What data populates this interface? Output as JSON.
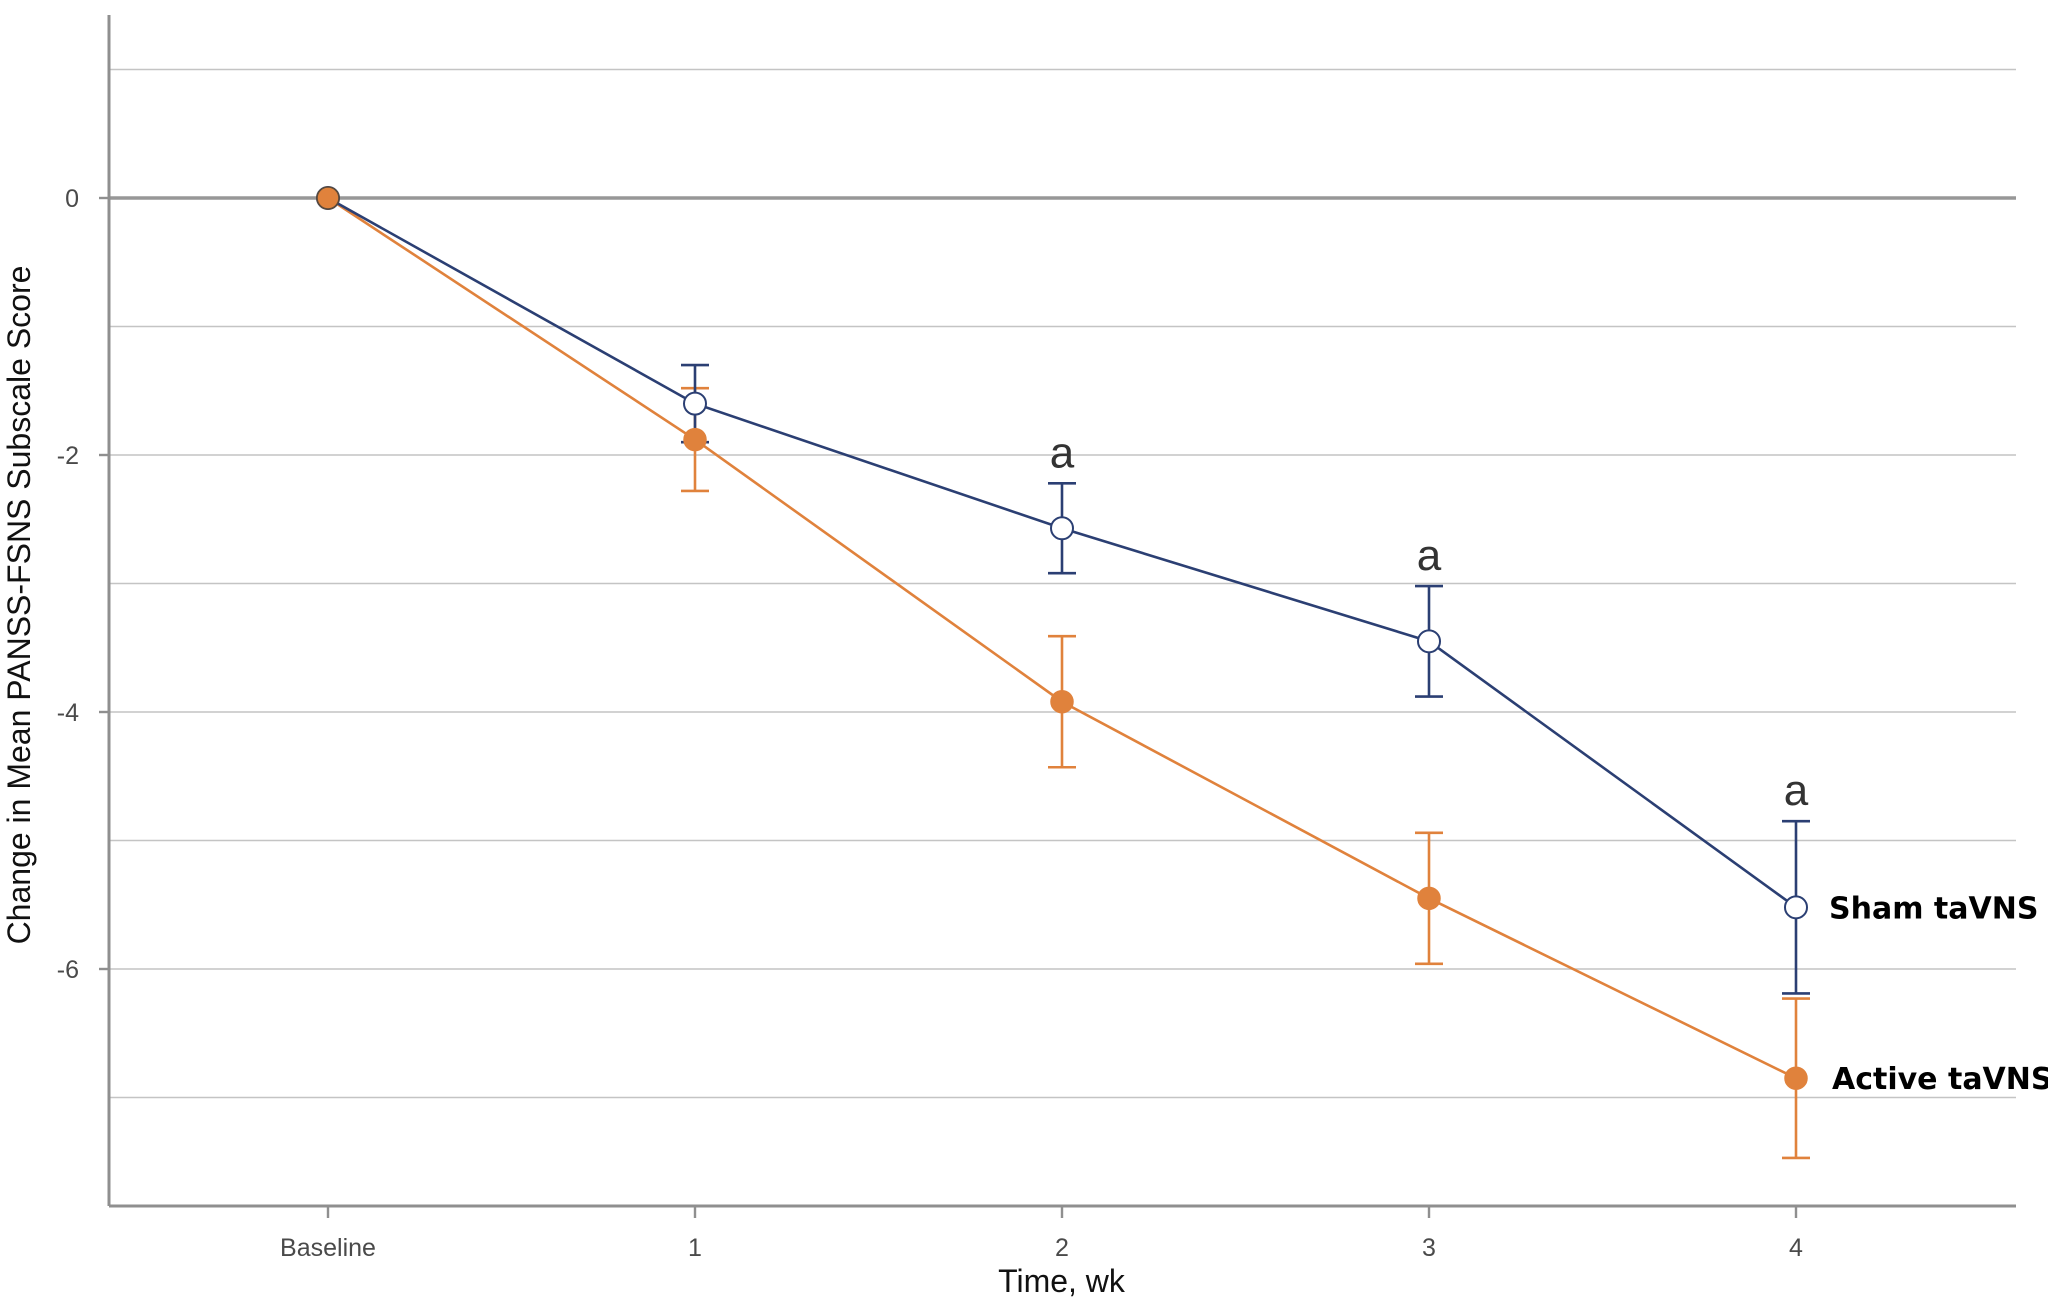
{
  "chart_data": {
    "type": "line",
    "title": "",
    "xlabel": "Time, wk",
    "ylabel": "Change in Mean  PANSS-FSNS  Subscale Score",
    "categories": [
      "Baseline",
      "1",
      "2",
      "3",
      "4"
    ],
    "yticks": [
      0,
      -2,
      -4,
      -6
    ],
    "ylim": [
      -7.8,
      1.4
    ],
    "grid": true,
    "series": [
      {
        "name": "Sham taVNS",
        "marker": "open-circle",
        "color": "#2b3f73",
        "values": [
          0,
          -1.6,
          -2.57,
          -3.45,
          -5.52
        ],
        "error": [
          0,
          0.3,
          0.35,
          0.43,
          0.67
        ]
      },
      {
        "name": "Active taVNS",
        "marker": "filled-circle",
        "color": "#e0823c",
        "values": [
          0,
          -1.88,
          -3.92,
          -5.45,
          -6.85
        ],
        "error": [
          0,
          0.4,
          0.51,
          0.51,
          0.62
        ]
      }
    ],
    "annotations": [
      {
        "text": "a",
        "category": "2"
      },
      {
        "text": "a",
        "category": "3"
      },
      {
        "text": "a",
        "category": "4"
      }
    ]
  }
}
